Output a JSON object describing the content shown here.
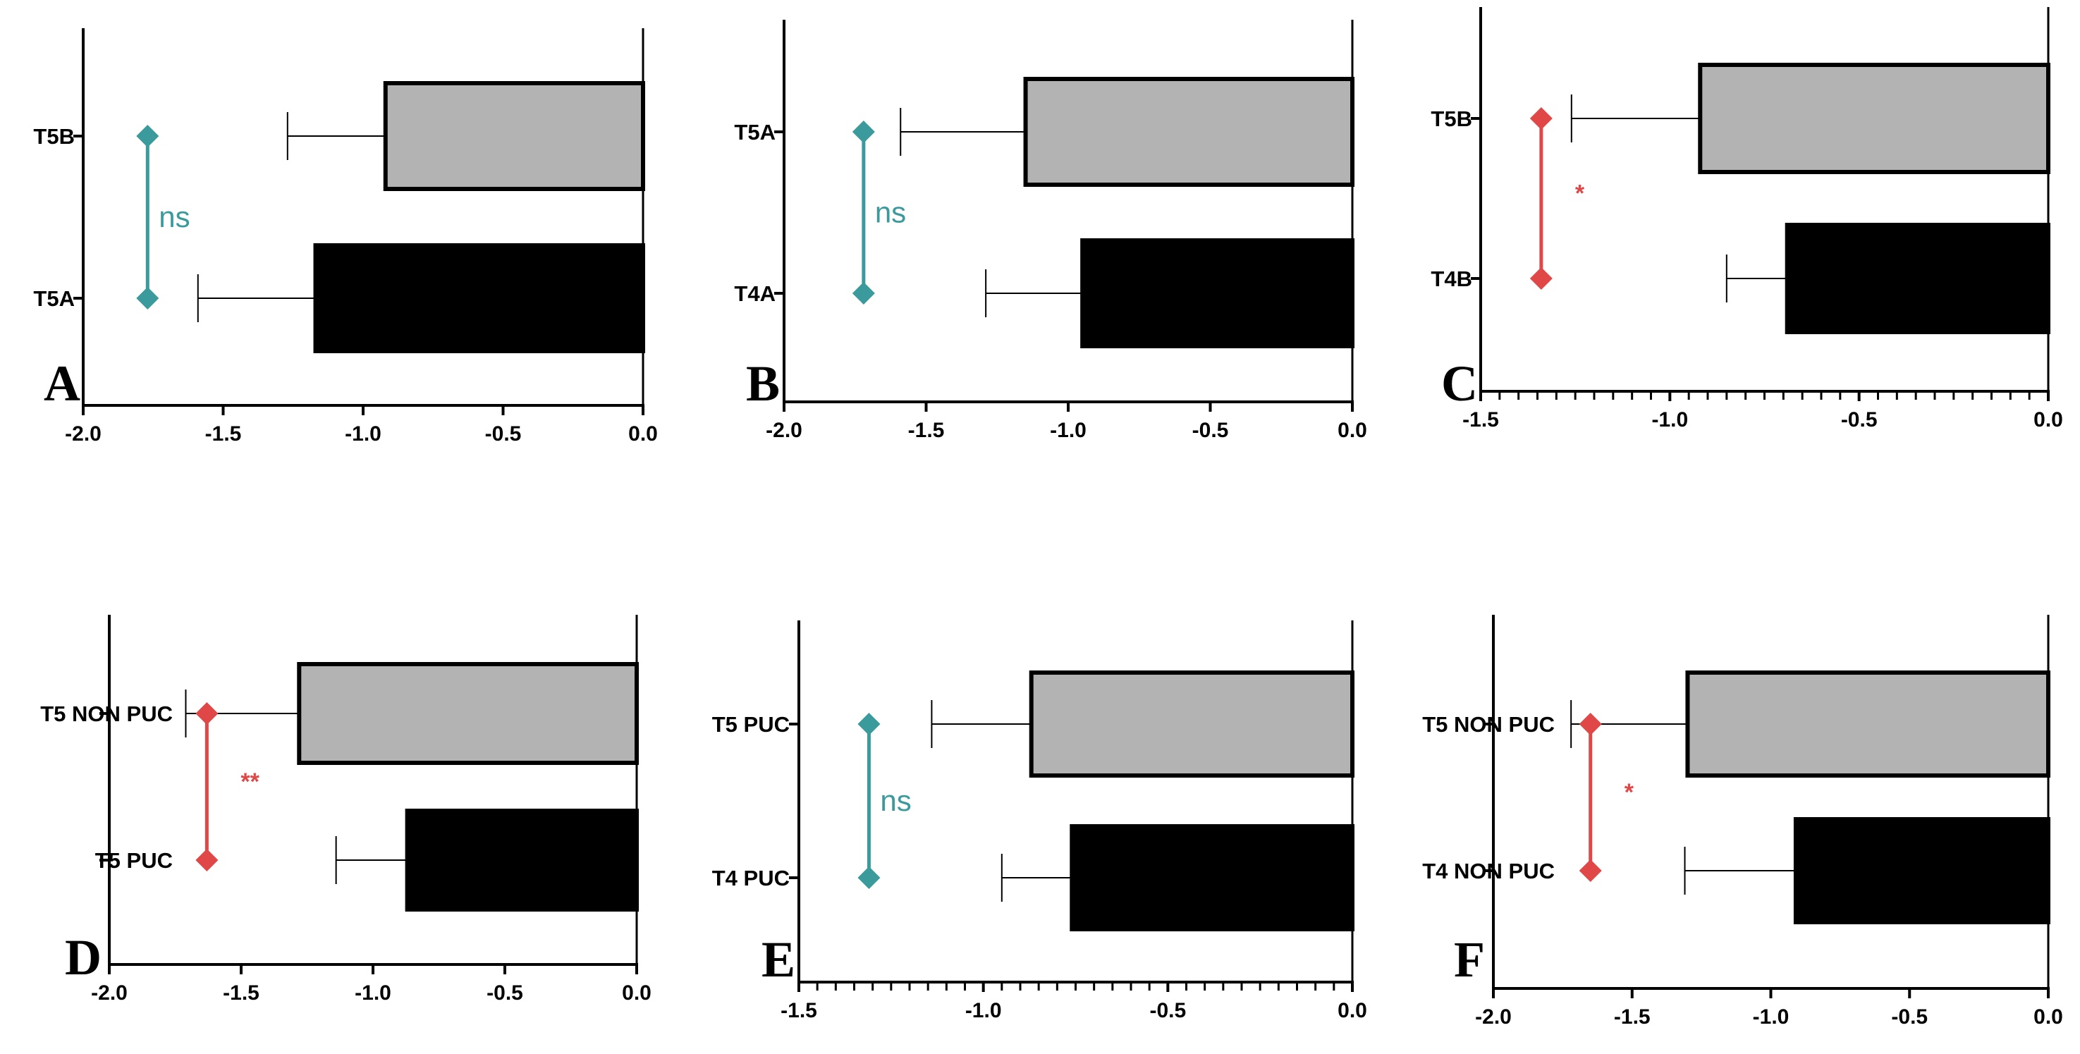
{
  "chart_data": [
    {
      "panel": "A",
      "type": "bar",
      "orientation": "horizontal",
      "categories": [
        "T5B",
        "T5A"
      ],
      "values": [
        -0.92,
        -1.17
      ],
      "errors": [
        0.35,
        0.42
      ],
      "colors": [
        "#b3b3b3",
        "#000000"
      ],
      "xlim": [
        -2.0,
        0.0
      ],
      "xticks": [
        "-2.0",
        "-1.5",
        "-1.0",
        "-0.5",
        "0.0"
      ],
      "minor_ticks": false,
      "significance": {
        "label": "ns",
        "color": "#3a9a9c",
        "x": -1.77
      }
    },
    {
      "panel": "B",
      "type": "bar",
      "orientation": "horizontal",
      "categories": [
        "T5A",
        "T4A"
      ],
      "values": [
        -1.15,
        -0.95
      ],
      "errors": [
        0.44,
        0.34
      ],
      "colors": [
        "#b3b3b3",
        "#000000"
      ],
      "xlim": [
        -2.0,
        0.0
      ],
      "xticks": [
        "-2.0",
        "-1.5",
        "-1.0",
        "-0.5",
        "0.0"
      ],
      "minor_ticks": false,
      "significance": {
        "label": "ns",
        "color": "#3a9a9c",
        "x": -1.72
      }
    },
    {
      "panel": "C",
      "type": "bar",
      "orientation": "horizontal",
      "categories": [
        "T5B",
        "T4B"
      ],
      "values": [
        -0.92,
        -0.69
      ],
      "errors": [
        0.34,
        0.16
      ],
      "colors": [
        "#b3b3b3",
        "#000000"
      ],
      "xlim": [
        -1.5,
        0.0
      ],
      "xticks": [
        "-1.5",
        "-1.0",
        "-0.5",
        "0.0"
      ],
      "minor_ticks": true,
      "significance": {
        "label": "*",
        "color": "#e04848",
        "x": -1.34
      }
    },
    {
      "panel": "D",
      "type": "bar",
      "orientation": "horizontal",
      "categories": [
        "T5 NON PUC",
        "T5 PUC"
      ],
      "values": [
        -1.28,
        -0.87
      ],
      "errors": [
        0.43,
        0.27
      ],
      "colors": [
        "#b3b3b3",
        "#000000"
      ],
      "xlim": [
        -2.0,
        0.0
      ],
      "xticks": [
        "-2.0",
        "-1.5",
        "-1.0",
        "-0.5",
        "0.0"
      ],
      "minor_ticks": false,
      "significance": {
        "label": "**",
        "color": "#e04848",
        "x": -1.63
      }
    },
    {
      "panel": "E",
      "type": "bar",
      "orientation": "horizontal",
      "categories": [
        "T5 PUC",
        "T4 PUC"
      ],
      "values": [
        -0.87,
        -0.76
      ],
      "errors": [
        0.27,
        0.19
      ],
      "colors": [
        "#b3b3b3",
        "#000000"
      ],
      "xlim": [
        -1.5,
        0.0
      ],
      "xticks": [
        "-1.5",
        "-1.0",
        "-0.5",
        "0.0"
      ],
      "minor_ticks": true,
      "significance": {
        "label": "ns",
        "color": "#3a9a9c",
        "x": -1.31
      }
    },
    {
      "panel": "F",
      "type": "bar",
      "orientation": "horizontal",
      "categories": [
        "T5 NON PUC",
        "T4 NON PUC"
      ],
      "values": [
        -1.3,
        -0.91
      ],
      "errors": [
        0.42,
        0.4
      ],
      "colors": [
        "#b3b3b3",
        "#000000"
      ],
      "xlim": [
        -2.0,
        0.0
      ],
      "xticks": [
        "-2.0",
        "-1.5",
        "-1.0",
        "-0.5",
        "0.0"
      ],
      "minor_ticks": false,
      "significance": {
        "label": "*",
        "color": "#e04848",
        "x": -1.65
      }
    }
  ]
}
